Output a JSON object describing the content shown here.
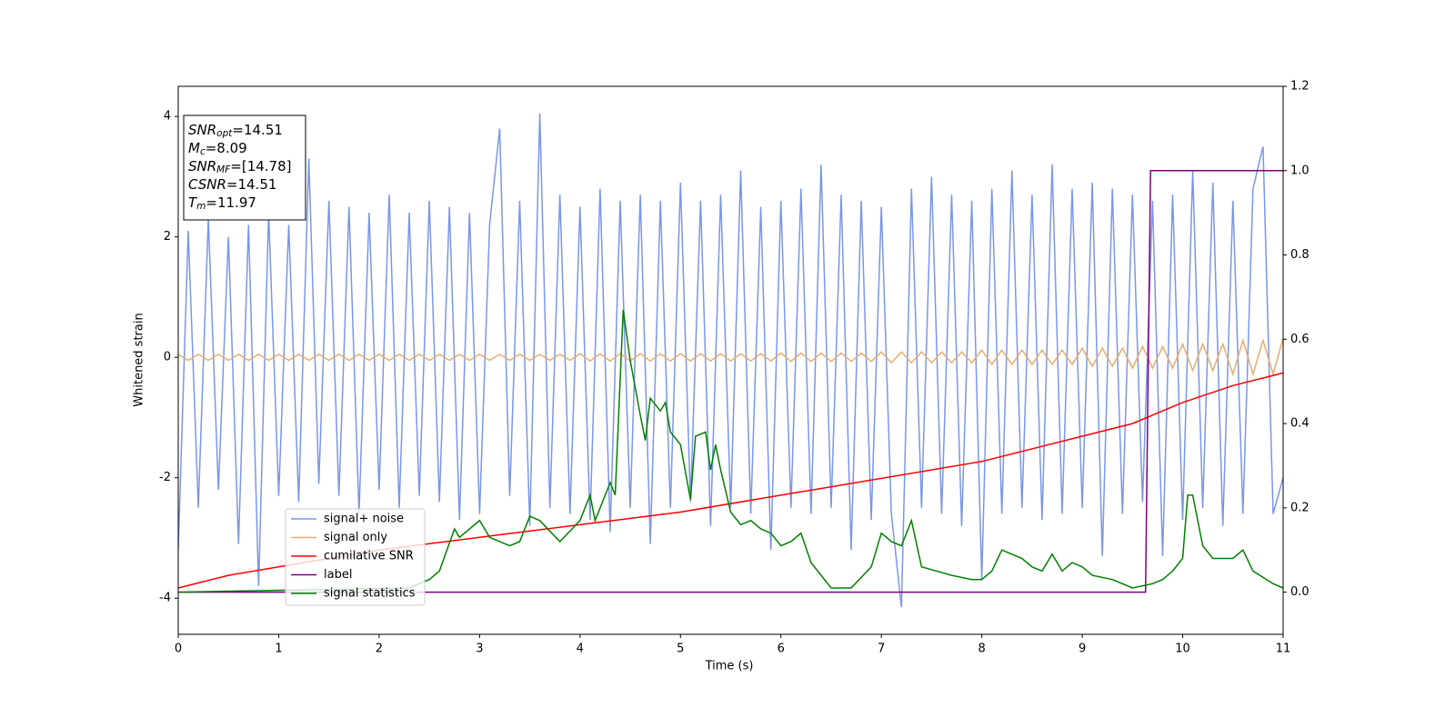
{
  "chart_data": {
    "type": "line",
    "xlabel": "Time (s)",
    "ylabel": "Whitened strain",
    "xlim": [
      0,
      11
    ],
    "ylim": [
      -4.6,
      4.5
    ],
    "y2lim": [
      -0.1,
      1.2
    ],
    "xticks": [
      0,
      1,
      2,
      3,
      4,
      5,
      6,
      7,
      8,
      9,
      10,
      11
    ],
    "yticks": [
      -4,
      -2,
      0,
      2,
      4
    ],
    "y2ticks": [
      {
        "value": 0,
        "label": "0.0"
      },
      {
        "value": 0.2,
        "label": "0.2"
      },
      {
        "value": 0.4,
        "label": "0.4"
      },
      {
        "value": 0.6,
        "label": "0.6"
      },
      {
        "value": 0.8,
        "label": "0.8"
      },
      {
        "value": 1,
        "label": "1.0"
      },
      {
        "value": 1.2,
        "label": "1.2"
      }
    ],
    "legend": "lower left",
    "annotation": [
      {
        "symbol": "SNR",
        "sub": "opt",
        "text": "=14.51"
      },
      {
        "symbol": "M",
        "sub": "c",
        "text": "=8.09"
      },
      {
        "symbol": "SNR",
        "sub": "MF",
        "text": "=[14.78]"
      },
      {
        "symbol": "CSNR",
        "text": "=14.51"
      },
      {
        "symbol": "T",
        "sub": "m",
        "text": "=11.97"
      }
    ],
    "x": [
      0,
      0.1,
      0.2,
      0.3,
      0.4,
      0.5,
      0.6,
      0.7,
      0.8,
      0.9,
      1,
      1.1,
      1.2,
      1.3,
      1.4,
      1.5,
      1.6,
      1.7,
      1.8,
      1.9,
      2,
      2.1,
      2.2,
      2.3,
      2.4,
      2.5,
      2.6,
      2.7,
      2.8,
      2.9,
      3,
      3.1,
      3.2,
      3.3,
      3.4,
      3.5,
      3.6,
      3.7,
      3.8,
      3.9,
      4,
      4.1,
      4.2,
      4.3,
      4.4,
      4.5,
      4.6,
      4.7,
      4.8,
      4.9,
      5,
      5.1,
      5.2,
      5.3,
      5.4,
      5.5,
      5.6,
      5.7,
      5.8,
      5.9,
      6,
      6.1,
      6.2,
      6.3,
      6.4,
      6.5,
      6.6,
      6.7,
      6.8,
      6.9,
      7,
      7.1,
      7.2,
      7.3,
      7.4,
      7.5,
      7.6,
      7.7,
      7.8,
      7.9,
      8,
      8.1,
      8.2,
      8.3,
      8.4,
      8.5,
      8.6,
      8.7,
      8.8,
      8.9,
      9,
      9.1,
      9.2,
      9.3,
      9.4,
      9.5,
      9.6,
      9.7,
      9.8,
      9.9,
      10,
      10.1,
      10.2,
      10.3,
      10.4,
      10.5,
      10.6,
      10.7,
      10.8,
      10.9,
      11
    ],
    "series": [
      {
        "name": "signal+ noise",
        "color": "#7b96e8",
        "values": [
          -3.2,
          2.1,
          -2.5,
          2.3,
          -2.2,
          2.0,
          -3.1,
          2.2,
          -3.8,
          2.4,
          -2.3,
          2.2,
          -2.4,
          3.3,
          -2.1,
          2.6,
          -2.3,
          2.5,
          -2.6,
          2.4,
          -2.2,
          2.7,
          -2.5,
          2.4,
          -2.3,
          2.6,
          -2.4,
          2.5,
          -2.7,
          2.4,
          -2.6,
          2.2,
          3.8,
          -2.3,
          2.6,
          -2.8,
          4.05,
          -2.5,
          2.7,
          -2.6,
          2.5,
          -2.7,
          2.8,
          -2.9,
          2.6,
          -2.5,
          2.7,
          -3.1,
          2.6,
          -2.5,
          2.9,
          -2.4,
          2.6,
          -2.8,
          2.7,
          -2.5,
          3.1,
          -2.6,
          2.5,
          -3.2,
          2.6,
          -2.5,
          2.8,
          -2.6,
          3.2,
          -2.5,
          2.7,
          -3.2,
          2.6,
          -2.7,
          2.5,
          -2.6,
          -4.15,
          2.8,
          -2.5,
          3.0,
          -2.6,
          2.7,
          -2.8,
          2.6,
          -3.7,
          2.8,
          -2.6,
          3.1,
          -2.5,
          2.7,
          -2.7,
          3.2,
          -2.6,
          2.8,
          -2.5,
          2.9,
          -3.3,
          2.8,
          -2.6,
          2.7,
          -2.4,
          2.6,
          -3.3,
          2.7,
          -2.7,
          3.1,
          -2.5,
          2.9,
          -2.8,
          2.6,
          -2.6,
          2.8,
          3.5,
          -2.6,
          -2.0
        ]
      },
      {
        "name": "signal only",
        "color": "#e8ad6e",
        "values": [
          0.05,
          -0.05,
          0.05,
          -0.05,
          0.05,
          -0.05,
          0.05,
          -0.05,
          0.05,
          -0.05,
          0.05,
          -0.05,
          0.05,
          -0.05,
          0.05,
          -0.05,
          0.05,
          -0.05,
          0.05,
          -0.05,
          0.05,
          -0.05,
          0.05,
          -0.05,
          0.05,
          -0.05,
          0.05,
          -0.05,
          0.05,
          -0.05,
          0.05,
          -0.05,
          0.05,
          -0.05,
          0.05,
          -0.05,
          0.05,
          -0.05,
          0.05,
          -0.05,
          0.06,
          -0.06,
          0.06,
          -0.06,
          0.06,
          -0.06,
          0.06,
          -0.06,
          0.06,
          -0.06,
          0.06,
          -0.06,
          0.06,
          -0.06,
          0.06,
          -0.06,
          0.06,
          -0.06,
          0.06,
          -0.06,
          0.07,
          -0.07,
          0.07,
          -0.07,
          0.07,
          -0.07,
          0.07,
          -0.07,
          0.07,
          -0.07,
          0.09,
          -0.09,
          0.09,
          -0.09,
          0.09,
          -0.09,
          0.09,
          -0.09,
          0.09,
          -0.09,
          0.12,
          -0.12,
          0.12,
          -0.12,
          0.12,
          -0.12,
          0.12,
          -0.12,
          0.12,
          -0.12,
          0.15,
          -0.15,
          0.15,
          -0.15,
          0.15,
          -0.18,
          0.18,
          -0.18,
          0.18,
          -0.18,
          0.22,
          -0.22,
          0.22,
          -0.22,
          0.22,
          -0.28,
          0.28,
          -0.28,
          0.28,
          -0.28,
          0.32
        ]
      },
      {
        "name": "cumilative SNR",
        "color": "#ff0000",
        "axis": "y2",
        "x": [
          0,
          0.5,
          1,
          2,
          3,
          4,
          5,
          6,
          7,
          8,
          9,
          9.5,
          10,
          10.5,
          11
        ],
        "values": [
          0.01,
          0.04,
          0.06,
          0.1,
          0.13,
          0.16,
          0.19,
          0.23,
          0.27,
          0.31,
          0.37,
          0.4,
          0.45,
          0.49,
          0.52
        ]
      },
      {
        "name": "label",
        "color": "#800080",
        "axis": "y2",
        "x": [
          0,
          9.63,
          9.68,
          11
        ],
        "values": [
          0,
          0,
          1,
          1
        ]
      },
      {
        "name": "signal statistics",
        "color": "#008000",
        "axis": "y2",
        "x": [
          0,
          2.3,
          2.5,
          2.6,
          2.75,
          2.8,
          3.0,
          3.1,
          3.3,
          3.4,
          3.5,
          3.6,
          3.8,
          4.0,
          4.1,
          4.15,
          4.3,
          4.35,
          4.43,
          4.5,
          4.6,
          4.65,
          4.7,
          4.8,
          4.85,
          4.9,
          5.0,
          5.1,
          5.15,
          5.25,
          5.3,
          5.35,
          5.4,
          5.5,
          5.6,
          5.7,
          5.8,
          5.9,
          6.0,
          6.1,
          6.2,
          6.3,
          6.4,
          6.5,
          6.7,
          6.9,
          7.0,
          7.1,
          7.2,
          7.3,
          7.4,
          7.7,
          7.9,
          8.0,
          8.1,
          8.2,
          8.4,
          8.5,
          8.6,
          8.7,
          8.8,
          8.9,
          9.0,
          9.1,
          9.3,
          9.5,
          9.7,
          9.8,
          9.9,
          10.0,
          10.05,
          10.1,
          10.2,
          10.3,
          10.5,
          10.6,
          10.7,
          10.9,
          11.0
        ],
        "values": [
          0.0,
          0.01,
          0.03,
          0.05,
          0.15,
          0.13,
          0.17,
          0.13,
          0.11,
          0.12,
          0.18,
          0.17,
          0.12,
          0.17,
          0.23,
          0.17,
          0.26,
          0.23,
          0.67,
          0.55,
          0.42,
          0.36,
          0.46,
          0.43,
          0.45,
          0.38,
          0.35,
          0.22,
          0.37,
          0.38,
          0.29,
          0.35,
          0.29,
          0.19,
          0.16,
          0.17,
          0.15,
          0.14,
          0.11,
          0.12,
          0.14,
          0.07,
          0.04,
          0.01,
          0.01,
          0.06,
          0.14,
          0.12,
          0.11,
          0.17,
          0.06,
          0.04,
          0.03,
          0.03,
          0.05,
          0.1,
          0.08,
          0.06,
          0.05,
          0.09,
          0.05,
          0.07,
          0.06,
          0.04,
          0.03,
          0.01,
          0.02,
          0.03,
          0.05,
          0.08,
          0.23,
          0.23,
          0.11,
          0.08,
          0.08,
          0.1,
          0.05,
          0.02,
          0.01
        ]
      }
    ]
  }
}
